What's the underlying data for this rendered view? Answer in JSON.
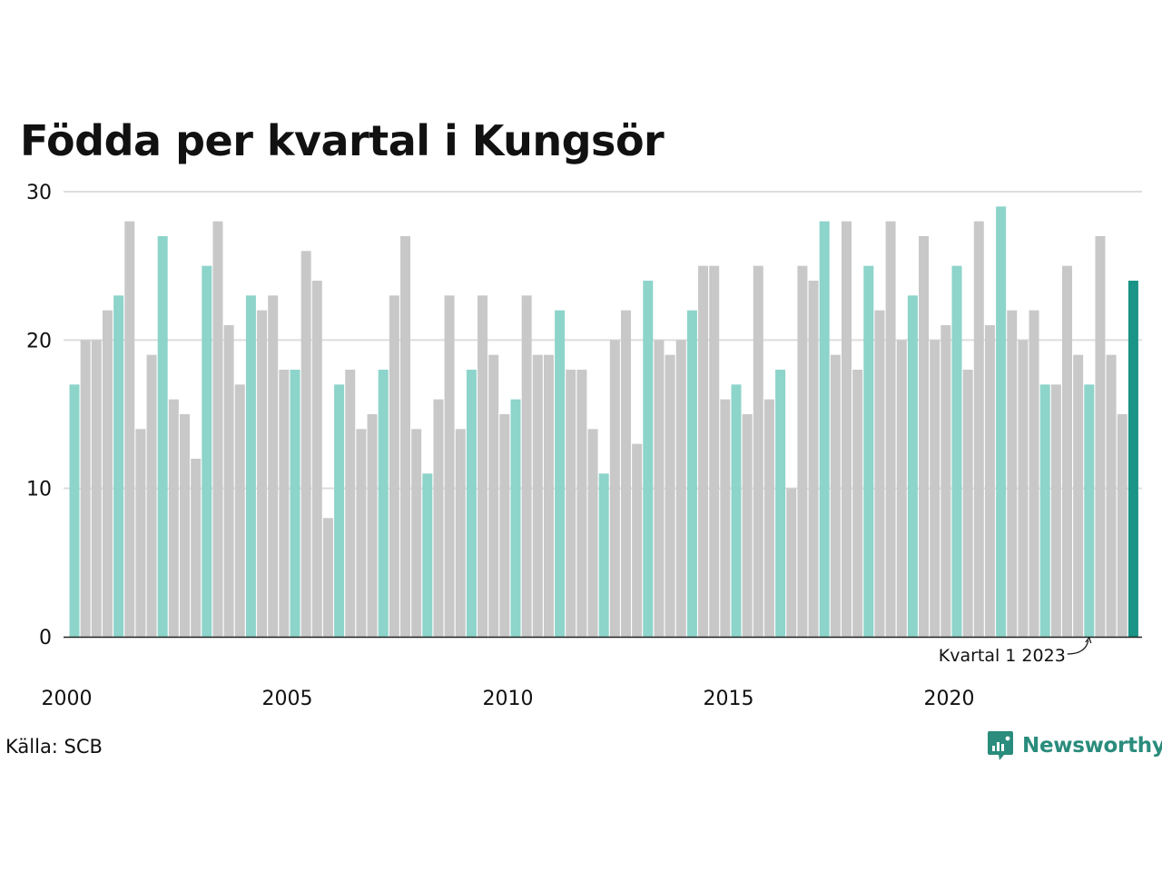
{
  "chart_data": {
    "type": "bar",
    "title": "Födda per kvartal i Kungsör",
    "ylim": [
      0,
      30
    ],
    "y_ticks": [
      "0",
      "10",
      "20",
      "30"
    ],
    "x_ticks": [
      "2000",
      "2005",
      "2010",
      "2015",
      "2020"
    ],
    "grid": true,
    "first_period": "2000 Q1",
    "values": [
      17,
      20,
      20,
      22,
      23,
      28,
      14,
      19,
      27,
      16,
      15,
      12,
      25,
      28,
      21,
      17,
      23,
      22,
      23,
      18,
      18,
      26,
      24,
      8,
      17,
      18,
      14,
      15,
      18,
      23,
      27,
      14,
      11,
      16,
      23,
      14,
      18,
      23,
      19,
      15,
      16,
      23,
      19,
      19,
      22,
      18,
      18,
      14,
      11,
      20,
      22,
      13,
      24,
      20,
      19,
      20,
      22,
      25,
      25,
      16,
      17,
      15,
      25,
      16,
      18,
      10,
      25,
      24,
      28,
      19,
      28,
      18,
      25,
      22,
      28,
      20,
      23,
      27,
      20,
      21,
      25,
      18,
      28,
      21,
      29,
      22,
      20,
      22,
      17,
      17,
      25,
      19,
      17,
      27,
      19,
      15,
      24
    ],
    "annotation": "Kvartal 1 2023",
    "colors": {
      "q1": "#8dd4cb",
      "other": "#c8c8c8",
      "latest": "#1a9486",
      "grid": "#dddddd",
      "axis": "#222222"
    }
  },
  "source": "Källa: SCB",
  "brand": {
    "name": "Newsworthy",
    "icon": "newsworthy-logo-icon",
    "color": "#2a8c7c"
  }
}
